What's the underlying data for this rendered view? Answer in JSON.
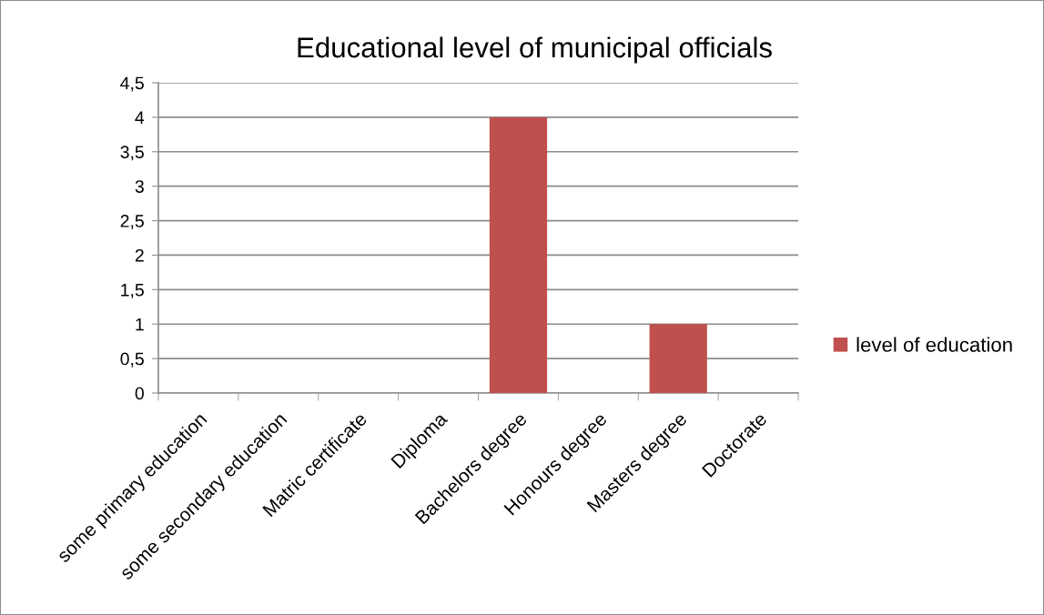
{
  "chart_data": {
    "type": "bar",
    "title": "Educational level of municipal officials",
    "categories": [
      "some primary education",
      "some secondary education",
      "Matric certificate",
      "Diploma",
      "Bachelors degree",
      "Honours degree",
      "Masters degree",
      "Doctorate"
    ],
    "series": [
      {
        "name": "level of education",
        "color": "#c0504d",
        "values": [
          0,
          0,
          0,
          0,
          4,
          0,
          1,
          0
        ]
      }
    ],
    "ylim": [
      0,
      4.5
    ],
    "yticks": [
      0,
      {
        "value": 0.5,
        "label": "0,5"
      },
      1,
      {
        "value": 1.5,
        "label": "1,5"
      },
      2,
      {
        "value": 2.5,
        "label": "2,5"
      },
      3,
      {
        "value": 3.5,
        "label": "3,5"
      },
      4,
      {
        "value": 4.5,
        "label": "4,5"
      }
    ],
    "grid": "y",
    "legend": "right"
  }
}
